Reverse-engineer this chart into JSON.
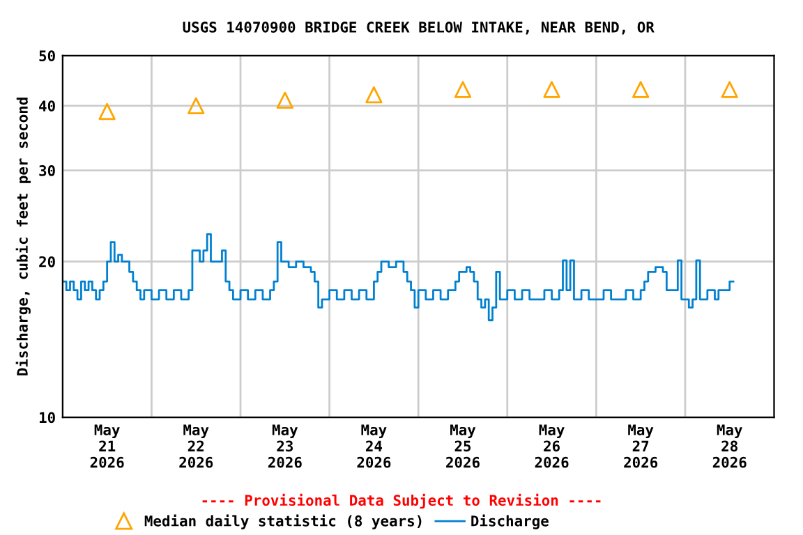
{
  "chart_data": {
    "type": "step",
    "title": "USGS 14070900 BRIDGE CREEK BELOW INTAKE, NEAR BEND, OR",
    "ylabel": "Discharge, cubic feet per second",
    "annotations": [
      "---- Provisional Data Subject to Revision ----"
    ],
    "log": "y",
    "grid": true,
    "legend": "bottom",
    "ylim": [
      10,
      50
    ],
    "yticks": [
      10,
      20,
      30,
      40,
      50
    ],
    "xlim": [
      "2026-05-21T00:00",
      "2026-05-29T00:00"
    ],
    "xticks": [
      {
        "value": "2026-05-21T00:00",
        "label": null
      },
      {
        "value": "2026-05-21T12:00",
        "label": "May\n21\n2026"
      },
      {
        "value": "2026-05-22T00:00",
        "label": null
      },
      {
        "value": "2026-05-22T12:00",
        "label": "May\n22\n2026"
      },
      {
        "value": "2026-05-23T00:00",
        "label": null
      },
      {
        "value": "2026-05-23T12:00",
        "label": "May\n23\n2026"
      },
      {
        "value": "2026-05-24T00:00",
        "label": null
      },
      {
        "value": "2026-05-24T12:00",
        "label": "May\n24\n2026"
      },
      {
        "value": "2026-05-25T00:00",
        "label": null
      },
      {
        "value": "2026-05-25T12:00",
        "label": "May\n25\n2026"
      },
      {
        "value": "2026-05-26T00:00",
        "label": null
      },
      {
        "value": "2026-05-26T12:00",
        "label": "May\n26\n2026"
      },
      {
        "value": "2026-05-27T00:00",
        "label": null
      },
      {
        "value": "2026-05-27T12:00",
        "label": "May\n27\n2026"
      },
      {
        "value": "2026-05-28T00:00",
        "label": null
      },
      {
        "value": "2026-05-28T12:00",
        "label": "May\n28\n2026"
      },
      {
        "value": "2026-05-29T00:00",
        "label": null
      }
    ],
    "series": [
      {
        "name": "Median daily statistic (8 years)",
        "type": "scatter",
        "marker": "triangle",
        "color": "#ffa500",
        "x": [
          "2026-05-21T12:00",
          "2026-05-22T12:00",
          "2026-05-23T12:00",
          "2026-05-24T12:00",
          "2026-05-25T12:00",
          "2026-05-26T12:00",
          "2026-05-27T12:00",
          "2026-05-28T12:00"
        ],
        "values": [
          39,
          40,
          41,
          42,
          43,
          43,
          43,
          43
        ]
      },
      {
        "name": "Discharge",
        "color": "#0080d0",
        "x": [
          "2026-05-21T00:00",
          "2026-05-21T01:00",
          "2026-05-21T02:00",
          "2026-05-21T03:00",
          "2026-05-21T04:00",
          "2026-05-21T05:00",
          "2026-05-21T06:00",
          "2026-05-21T07:00",
          "2026-05-21T08:00",
          "2026-05-21T09:00",
          "2026-05-21T10:00",
          "2026-05-21T11:00",
          "2026-05-21T12:00",
          "2026-05-21T13:00",
          "2026-05-21T14:00",
          "2026-05-21T15:00",
          "2026-05-21T16:00",
          "2026-05-21T17:00",
          "2026-05-21T18:00",
          "2026-05-21T19:00",
          "2026-05-21T20:00",
          "2026-05-21T21:00",
          "2026-05-21T22:00",
          "2026-05-22T00:00",
          "2026-05-22T02:00",
          "2026-05-22T04:00",
          "2026-05-22T06:00",
          "2026-05-22T08:00",
          "2026-05-22T10:00",
          "2026-05-22T11:00",
          "2026-05-22T13:00",
          "2026-05-22T14:00",
          "2026-05-22T15:00",
          "2026-05-22T16:00",
          "2026-05-22T18:00",
          "2026-05-22T19:00",
          "2026-05-22T20:00",
          "2026-05-22T21:00",
          "2026-05-22T22:00",
          "2026-05-23T00:00",
          "2026-05-23T02:00",
          "2026-05-23T04:00",
          "2026-05-23T06:00",
          "2026-05-23T08:00",
          "2026-05-23T09:00",
          "2026-05-23T10:00",
          "2026-05-23T11:00",
          "2026-05-23T13:00",
          "2026-05-23T15:00",
          "2026-05-23T17:00",
          "2026-05-23T19:00",
          "2026-05-23T20:00",
          "2026-05-23T21:00",
          "2026-05-23T22:00",
          "2026-05-24T00:00",
          "2026-05-24T02:00",
          "2026-05-24T04:00",
          "2026-05-24T06:00",
          "2026-05-24T08:00",
          "2026-05-24T10:00",
          "2026-05-24T12:00",
          "2026-05-24T13:00",
          "2026-05-24T14:00",
          "2026-05-24T16:00",
          "2026-05-24T18:00",
          "2026-05-24T20:00",
          "2026-05-24T21:00",
          "2026-05-24T22:00",
          "2026-05-24T23:00",
          "2026-05-25T00:00",
          "2026-05-25T02:00",
          "2026-05-25T04:00",
          "2026-05-25T06:00",
          "2026-05-25T08:00",
          "2026-05-25T10:00",
          "2026-05-25T11:00",
          "2026-05-25T13:00",
          "2026-05-25T14:00",
          "2026-05-25T15:00",
          "2026-05-25T16:00",
          "2026-05-25T17:00",
          "2026-05-25T18:00",
          "2026-05-25T19:00",
          "2026-05-25T20:00",
          "2026-05-25T21:00",
          "2026-05-25T22:00",
          "2026-05-26T00:00",
          "2026-05-26T02:00",
          "2026-05-26T04:00",
          "2026-05-26T06:00",
          "2026-05-26T08:00",
          "2026-05-26T10:00",
          "2026-05-26T12:00",
          "2026-05-26T14:00",
          "2026-05-26T15:00",
          "2026-05-26T16:00",
          "2026-05-26T17:00",
          "2026-05-26T18:00",
          "2026-05-26T20:00",
          "2026-05-26T22:00",
          "2026-05-27T00:00",
          "2026-05-27T02:00",
          "2026-05-27T04:00",
          "2026-05-27T06:00",
          "2026-05-27T08:00",
          "2026-05-27T10:00",
          "2026-05-27T12:00",
          "2026-05-27T13:00",
          "2026-05-27T14:00",
          "2026-05-27T16:00",
          "2026-05-27T18:00",
          "2026-05-27T19:00",
          "2026-05-27T21:00",
          "2026-05-27T22:00",
          "2026-05-27T23:00",
          "2026-05-28T01:00",
          "2026-05-28T02:00",
          "2026-05-28T03:00",
          "2026-05-28T04:00",
          "2026-05-28T06:00",
          "2026-05-28T08:00",
          "2026-05-28T09:00",
          "2026-05-28T12:00",
          "2026-05-28T13:00"
        ],
        "values": [
          18.3,
          17.6,
          18.3,
          17.6,
          16.9,
          18.3,
          17.6,
          18.3,
          17.6,
          16.9,
          17.6,
          18.3,
          20,
          21.8,
          20,
          20.6,
          20,
          20,
          19.1,
          18.3,
          17.6,
          16.9,
          17.6,
          16.9,
          17.6,
          16.9,
          17.6,
          16.9,
          17.6,
          21,
          20,
          21,
          22.6,
          20,
          20,
          21,
          18.3,
          17.6,
          16.9,
          17.6,
          16.9,
          17.6,
          16.9,
          17.6,
          18.3,
          21.8,
          20,
          19.5,
          20,
          19.5,
          19.1,
          18.3,
          16.3,
          16.9,
          17.6,
          16.9,
          17.6,
          16.9,
          17.6,
          16.9,
          18.3,
          19.1,
          20,
          19.5,
          20,
          19.1,
          18.3,
          17.6,
          16.3,
          17.6,
          16.9,
          17.6,
          16.9,
          17.6,
          18.3,
          19.1,
          19.5,
          19.1,
          18.3,
          16.9,
          16.3,
          16.9,
          15.4,
          16.3,
          19.1,
          16.9,
          17.6,
          16.9,
          17.6,
          16.9,
          16.9,
          17.6,
          16.9,
          17.6,
          20.1,
          17.6,
          20.1,
          16.9,
          17.6,
          16.9,
          16.9,
          17.6,
          16.9,
          16.9,
          17.6,
          16.9,
          17.6,
          18.3,
          19.1,
          19.5,
          19.1,
          17.6,
          17.6,
          20.1,
          16.9,
          16.3,
          16.9,
          20.1,
          16.9,
          17.6,
          16.9,
          17.6,
          18.3,
          18.3
        ]
      }
    ]
  }
}
